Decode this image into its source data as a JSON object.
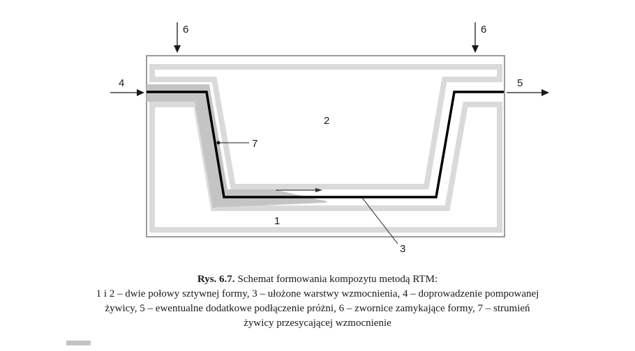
{
  "labels": {
    "mold_lower": "1",
    "mold_upper": "2",
    "reinforcement": "3",
    "resin_inlet": "4",
    "vacuum_outlet": "5",
    "clamp_left": "6",
    "clamp_right": "6",
    "resin_flow": "7"
  },
  "caption": {
    "figure_id": "Rys. 6.7.",
    "title": "Schemat formowania kompozytu metodą RTM:",
    "lines": [
      "1 i 2 – dwie połowy sztywnej formy, 3 – ułożone warstwy wzmocnienia, 4 – doprowadzenie pompowanej",
      "żywicy, 5 – ewentualne dodatkowe podłączenie próżni, 6 – zwornice zamykające formy, 7 – strumień",
      "żywicy przesycającej wzmocnienie"
    ]
  },
  "colors": {
    "mold_outline": "#9c9c9c",
    "band_light": "#dadada",
    "resin_region": "#c4c4c4",
    "reinforcement_line": "#000000",
    "arrow": "#1a1a1a"
  }
}
